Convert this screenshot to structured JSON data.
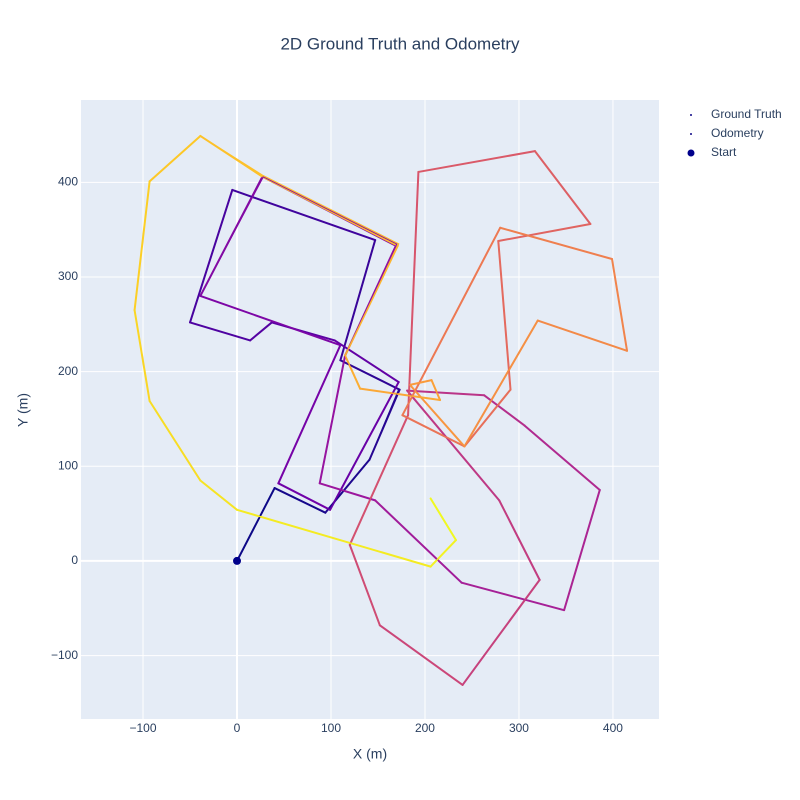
{
  "chart_data": {
    "type": "trajectory",
    "title": "2D Ground Truth and Odometry",
    "x_label": "X (m)",
    "y_label": "Y (m)",
    "xlim": [
      -166,
      449
    ],
    "ylim": [
      -167,
      487
    ],
    "xticks": [
      {
        "value": -100,
        "label": "−100"
      },
      0,
      100,
      200,
      300,
      400
    ],
    "yticks": [
      {
        "value": -100,
        "label": "−100"
      },
      0,
      100,
      200,
      300,
      400
    ],
    "grid": true,
    "legend": "right",
    "colorscale": [
      "#0d0887",
      "#46039f",
      "#7201a8",
      "#9c179e",
      "#bd3786",
      "#d8576b",
      "#ed7953",
      "#fb9f3a",
      "#fdca26",
      "#f0f921"
    ],
    "series": [
      {
        "name": "Ground Truth",
        "color": "#0d0887",
        "x": [
          0,
          40,
          94,
          141,
          173,
          110,
          147,
          -5,
          -50,
          14,
          37,
          104,
          172,
          99,
          44,
          110,
          -39,
          27,
          169,
          115,
          88,
          147,
          239,
          348,
          386,
          306,
          263,
          181,
          279,
          322,
          240,
          152,
          120,
          182,
          193,
          317,
          376,
          278,
          291,
          242,
          176,
          280,
          399,
          415,
          320,
          242,
          184,
          207,
          216,
          131,
          115,
          171,
          27,
          -39,
          -93,
          -109,
          -93,
          -39,
          0,
          206,
          233,
          206
        ],
        "y": [
          0,
          77,
          51,
          107,
          181,
          212,
          339,
          392,
          252,
          233,
          252,
          233,
          189,
          54,
          82,
          228,
          280,
          406,
          333,
          217,
          82,
          64,
          -23,
          -52,
          75,
          143,
          175,
          180,
          64,
          -20,
          -131,
          -68,
          17,
          154,
          411,
          433,
          356,
          338,
          181,
          121,
          154,
          352,
          319,
          222,
          254,
          121,
          186,
          191,
          170,
          182,
          217,
          333,
          406,
          449,
          401,
          265,
          169,
          85,
          54,
          -6,
          22,
          66
        ]
      },
      {
        "name": "Odometry",
        "color": "#0d0887",
        "x": [
          0,
          40,
          94,
          141,
          172,
          110,
          147,
          -5,
          -50,
          14,
          37,
          104,
          172,
          99,
          44,
          110,
          -39,
          28,
          170,
          115,
          88,
          147,
          239,
          348,
          386,
          306,
          263,
          181,
          279,
          322,
          240,
          152,
          120,
          182,
          193,
          317,
          376,
          278,
          291,
          242,
          176,
          280,
          399,
          415,
          320,
          242,
          184,
          207,
          216,
          131,
          115,
          172,
          28,
          -39,
          -93,
          -109,
          -93,
          -39,
          0,
          206,
          233,
          206
        ],
        "y": [
          0,
          77,
          51,
          107,
          181,
          212,
          339,
          392,
          252,
          233,
          252,
          233,
          189,
          54,
          82,
          228,
          280,
          406,
          335,
          217,
          82,
          64,
          -23,
          -52,
          75,
          143,
          175,
          180,
          64,
          -20,
          -131,
          -68,
          17,
          154,
          411,
          433,
          356,
          338,
          181,
          121,
          154,
          352,
          319,
          222,
          254,
          121,
          186,
          191,
          170,
          182,
          217,
          335,
          407,
          449,
          401,
          265,
          169,
          85,
          54,
          -6,
          22,
          66
        ]
      },
      {
        "name": "Start",
        "color": "#00008b",
        "x": [
          0
        ],
        "y": [
          0
        ]
      }
    ]
  }
}
